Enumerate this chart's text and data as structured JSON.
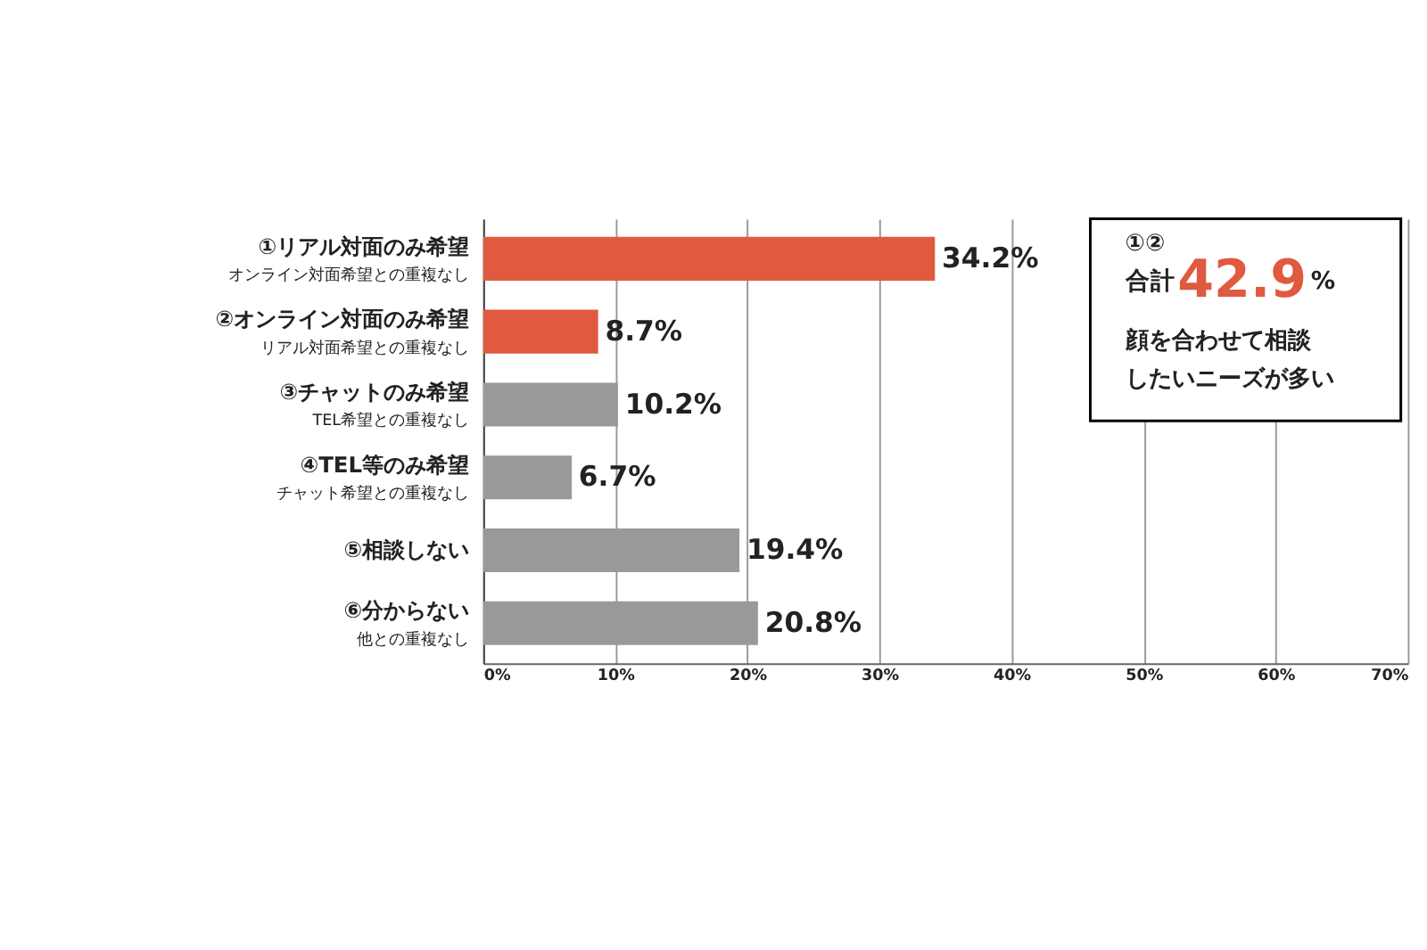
{
  "chart_data": {
    "type": "bar",
    "orientation": "horizontal",
    "categories": [
      "①リアル対面のみ希望",
      "②オンライン対面のみ希望",
      "③チャットのみ希望",
      "④TEL等のみ希望",
      "⑤相談しない",
      "⑥分からない"
    ],
    "values": [
      34.2,
      8.7,
      10.2,
      6.7,
      19.4,
      20.8
    ],
    "colors": [
      "#e05a3f",
      "#e05a3f",
      "#999999",
      "#999999",
      "#999999",
      "#999999"
    ],
    "value_labels": [
      "34.2%",
      "8.7%",
      "10.2%",
      "6.7%",
      "19.4%",
      "20.8%"
    ],
    "xlim": [
      0,
      70
    ],
    "xticks": [
      {
        "value": 0,
        "label": "0%"
      },
      {
        "value": 10,
        "label": "10%"
      },
      {
        "value": 20,
        "label": "20%"
      },
      {
        "value": 30,
        "label": "30%"
      },
      {
        "value": 40,
        "label": "40%"
      },
      {
        "value": 50,
        "label": "50%"
      },
      {
        "value": 60,
        "label": "60%"
      },
      {
        "value": 70,
        "label": "70%"
      }
    ],
    "grid": "x",
    "annotations": [
      "オンライン対面希望との重複なし",
      "リアル対面希望との重複なし",
      "TEL希望との重複なし",
      "チャット希望との重複なし",
      "他との重複なし",
      "①②",
      "合計42.9%",
      "顔を合わせて相談",
      "したいニーズが多い"
    ]
  }
}
